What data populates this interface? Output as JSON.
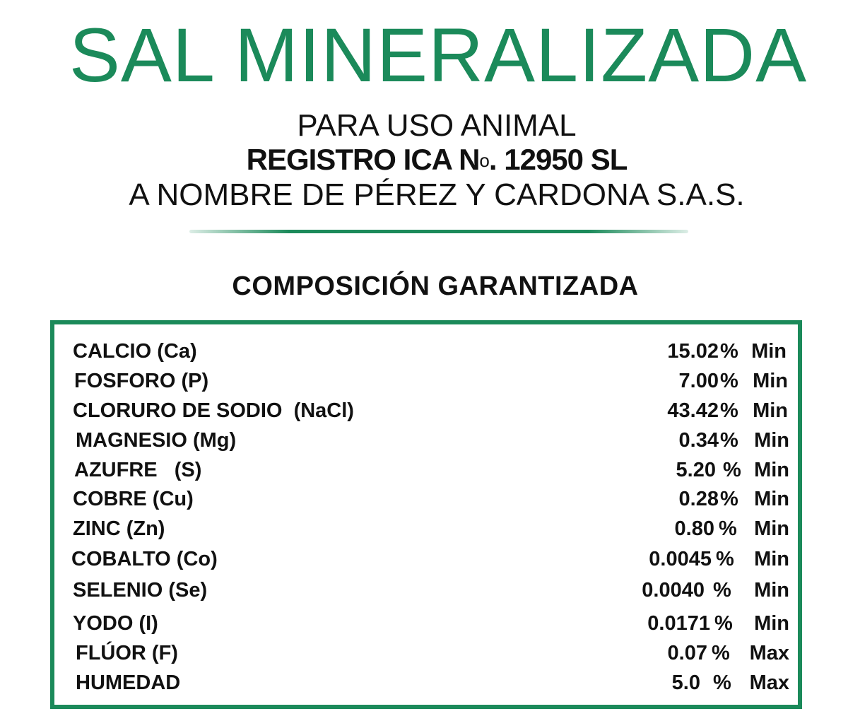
{
  "header": {
    "title": "SAL MINERALIZADA",
    "line1": "PARA USO ANIMAL",
    "registro_prefix": "REGISTRO ICA N",
    "registro_o": "o",
    "registro_suffix": ". 12950 SL",
    "line3": "A NOMBRE DE PÉREZ Y CARDONA S.A.S."
  },
  "composition": {
    "heading": "COMPOSICIÓN GARANTIZADA",
    "rows": [
      {
        "name": "CALCIO (Ca)",
        "value": "15.02",
        "unit": "%",
        "limit": "Min"
      },
      {
        "name": "FOSFORO (P)",
        "value": "7.00",
        "unit": "%",
        "limit": "Min"
      },
      {
        "name": "CLORURO DE SODIO  (NaCl)",
        "value": "43.42",
        "unit": "%",
        "limit": "Min"
      },
      {
        "name": "MAGNESIO (Mg)",
        "value": "0.34",
        "unit": "%",
        "limit": "Min"
      },
      {
        "name": "AZUFRE   (S)",
        "value": "5.20",
        "unit": "%",
        "limit": "Min"
      },
      {
        "name": "COBRE (Cu)",
        "value": "0.28",
        "unit": "%",
        "limit": "Min"
      },
      {
        "name": "ZINC (Zn)",
        "value": "0.80",
        "unit": "%",
        "limit": "Min"
      },
      {
        "name": "COBALTO (Co)",
        "value": "0.0045",
        "unit": "%",
        "limit": "Min"
      },
      {
        "name": "SELENIO (Se)",
        "value": "0.0040",
        "unit": "%",
        "limit": "Min"
      },
      {
        "name": "YODO (I)",
        "value": "0.0171",
        "unit": "%",
        "limit": "Min"
      },
      {
        "name": "FLÚOR (F)",
        "value": "0.07",
        "unit": "%",
        "limit": "Max"
      },
      {
        "name": "HUMEDAD",
        "value": "5.0",
        "unit": "%",
        "limit": "Max"
      }
    ]
  },
  "colors": {
    "brand_green": "#1b8a5a",
    "text": "#111111"
  }
}
